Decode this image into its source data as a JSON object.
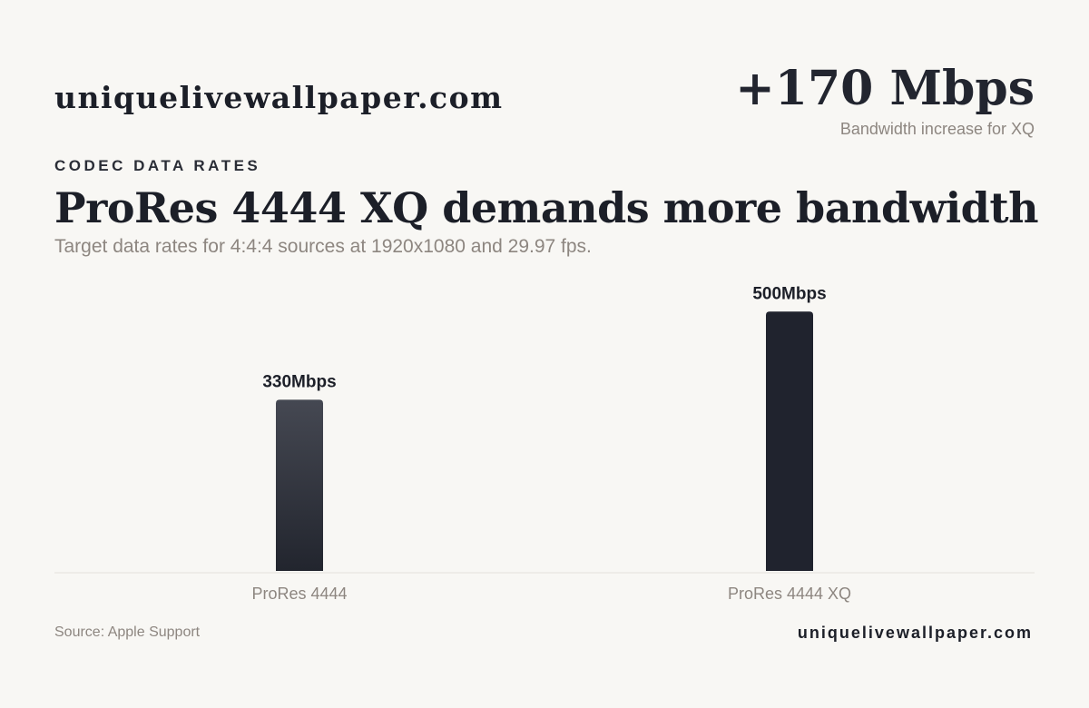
{
  "header": {
    "brand": "uniquelivewallpaper.com",
    "kpi_value": "+170 Mbps",
    "kpi_label": "Bandwidth increase for XQ"
  },
  "eyebrow": "CODEC DATA RATES",
  "title": "ProRes 4444 XQ demands more bandwidth",
  "subtitle": "Target data rates for 4:4:4 sources at 1920x1080 and 29.97 fps.",
  "footer": {
    "source": "Source: Apple Support",
    "brand": "uniquelivewallpaper.com"
  },
  "chart_data": {
    "type": "bar",
    "categories": [
      "ProRes 4444",
      "ProRes 4444 XQ"
    ],
    "values": [
      330,
      500
    ],
    "data_labels": [
      "330Mbps",
      "500Mbps"
    ],
    "unit": "Mbps",
    "ylim": [
      0,
      560
    ],
    "grid": false,
    "legend": "none",
    "colors": [
      "#3a3d47",
      "#20232e"
    ]
  }
}
